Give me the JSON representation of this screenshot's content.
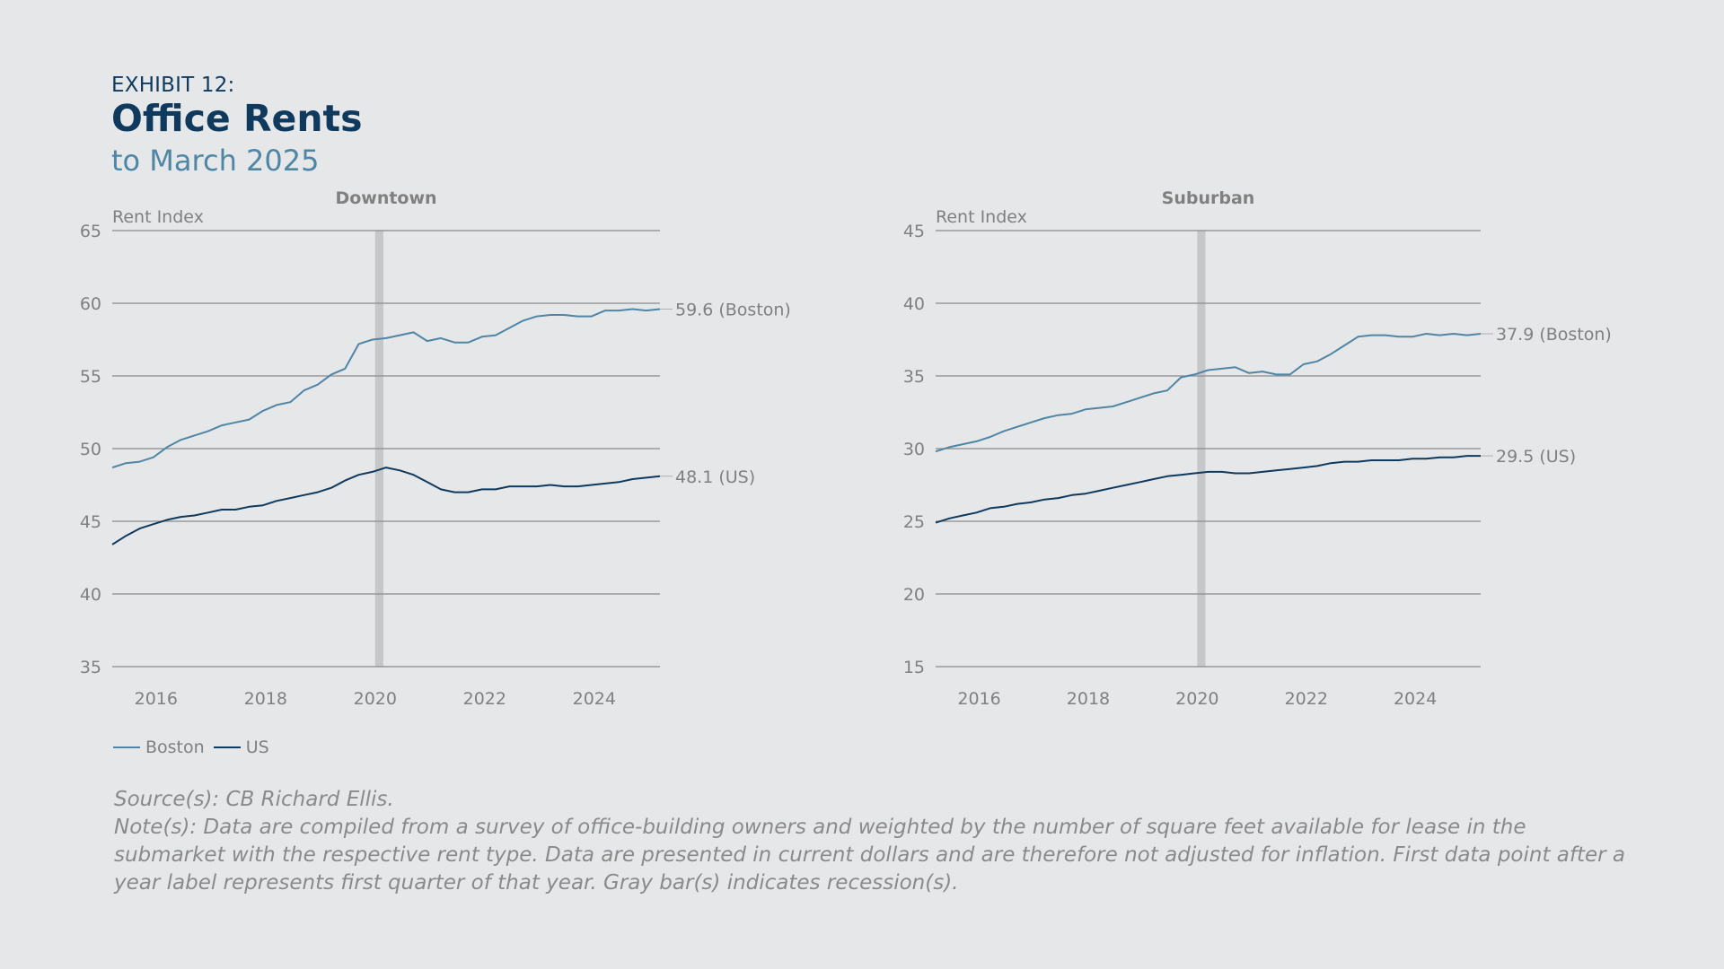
{
  "header": {
    "exhibit": "EXHIBIT 12:",
    "title": "Office Rents",
    "subtitle": "to March 2025"
  },
  "colors": {
    "boston": "#4f86a6",
    "us": "#0f3a5e",
    "recession": "#c6c7c9",
    "grid": "#8a8a8a",
    "text": "#808080"
  },
  "legend": [
    {
      "label": "Boston",
      "color": "#4f86a6"
    },
    {
      "label": "US",
      "color": "#0f3a5e"
    }
  ],
  "notes": {
    "source": "Source(s): CB Richard Ellis.",
    "note": "Note(s): Data are compiled from a survey of office-building owners and weighted by the number of square feet available for lease in the submarket with the respective rent type. Data are presented in current dollars and are therefore not adjusted for inflation. First data point after a year label represents first quarter of that year. Gray bar(s) indicates recession(s)."
  },
  "chart_data": [
    {
      "type": "line",
      "title": "Downtown",
      "ylabel": "Rent Index",
      "xlabel": "",
      "xlim": [
        2015.2,
        2025.2
      ],
      "ylim": [
        35,
        65
      ],
      "yticks": [
        35,
        40,
        45,
        50,
        55,
        60,
        65
      ],
      "xticks": [
        2016,
        2018,
        2020,
        2022,
        2024
      ],
      "grid": true,
      "recession": [
        2020.0,
        2020.15
      ],
      "end_labels": [
        "59.6 (Boston)",
        "48.1 (US)"
      ],
      "series": [
        {
          "name": "Boston",
          "color": "#4f86a6",
          "x": [
            2015.2,
            2015.45,
            2015.7,
            2015.95,
            2016.2,
            2016.45,
            2016.7,
            2016.95,
            2017.2,
            2017.45,
            2017.7,
            2017.95,
            2018.2,
            2018.45,
            2018.7,
            2018.95,
            2019.2,
            2019.45,
            2019.7,
            2019.95,
            2020.2,
            2020.45,
            2020.7,
            2020.95,
            2021.2,
            2021.45,
            2021.7,
            2021.95,
            2022.2,
            2022.45,
            2022.7,
            2022.95,
            2023.2,
            2023.45,
            2023.7,
            2023.95,
            2024.2,
            2024.45,
            2024.7,
            2024.95,
            2025.2
          ],
          "y": [
            48.7,
            49.0,
            49.1,
            49.4,
            50.1,
            50.6,
            50.9,
            51.2,
            51.6,
            51.8,
            52.0,
            52.6,
            53.0,
            53.2,
            54.0,
            54.4,
            55.1,
            55.5,
            57.2,
            57.5,
            57.6,
            57.8,
            58.0,
            57.4,
            57.6,
            57.3,
            57.3,
            57.7,
            57.8,
            58.3,
            58.8,
            59.1,
            59.2,
            59.2,
            59.1,
            59.1,
            59.5,
            59.5,
            59.6,
            59.5,
            59.6
          ]
        },
        {
          "name": "US",
          "color": "#0f3a5e",
          "x": [
            2015.2,
            2015.45,
            2015.7,
            2015.95,
            2016.2,
            2016.45,
            2016.7,
            2016.95,
            2017.2,
            2017.45,
            2017.7,
            2017.95,
            2018.2,
            2018.45,
            2018.7,
            2018.95,
            2019.2,
            2019.45,
            2019.7,
            2019.95,
            2020.2,
            2020.45,
            2020.7,
            2020.95,
            2021.2,
            2021.45,
            2021.7,
            2021.95,
            2022.2,
            2022.45,
            2022.7,
            2022.95,
            2023.2,
            2023.45,
            2023.7,
            2023.95,
            2024.2,
            2024.45,
            2024.7,
            2024.95,
            2025.2
          ],
          "y": [
            43.4,
            44.0,
            44.5,
            44.8,
            45.1,
            45.3,
            45.4,
            45.6,
            45.8,
            45.8,
            46.0,
            46.1,
            46.4,
            46.6,
            46.8,
            47.0,
            47.3,
            47.8,
            48.2,
            48.4,
            48.7,
            48.5,
            48.2,
            47.7,
            47.2,
            47.0,
            47.0,
            47.2,
            47.2,
            47.4,
            47.4,
            47.4,
            47.5,
            47.4,
            47.4,
            47.5,
            47.6,
            47.7,
            47.9,
            48.0,
            48.1
          ]
        }
      ]
    },
    {
      "type": "line",
      "title": "Suburban",
      "ylabel": "Rent Index",
      "xlabel": "",
      "xlim": [
        2015.2,
        2025.2
      ],
      "ylim": [
        15,
        45
      ],
      "yticks": [
        15,
        20,
        25,
        30,
        35,
        40,
        45
      ],
      "xticks": [
        2016,
        2018,
        2020,
        2022,
        2024
      ],
      "grid": true,
      "recession": [
        2020.0,
        2020.15
      ],
      "end_labels": [
        "37.9  (Boston)",
        "29.5  (US)"
      ],
      "series": [
        {
          "name": "Boston",
          "color": "#4f86a6",
          "x": [
            2015.2,
            2015.45,
            2015.7,
            2015.95,
            2016.2,
            2016.45,
            2016.7,
            2016.95,
            2017.2,
            2017.45,
            2017.7,
            2017.95,
            2018.2,
            2018.45,
            2018.7,
            2018.95,
            2019.2,
            2019.45,
            2019.7,
            2019.95,
            2020.2,
            2020.45,
            2020.7,
            2020.95,
            2021.2,
            2021.45,
            2021.7,
            2021.95,
            2022.2,
            2022.45,
            2022.7,
            2022.95,
            2023.2,
            2023.45,
            2023.7,
            2023.95,
            2024.2,
            2024.45,
            2024.7,
            2024.95,
            2025.2
          ],
          "y": [
            29.8,
            30.1,
            30.3,
            30.5,
            30.8,
            31.2,
            31.5,
            31.8,
            32.1,
            32.3,
            32.4,
            32.7,
            32.8,
            32.9,
            33.2,
            33.5,
            33.8,
            34.0,
            34.9,
            35.1,
            35.4,
            35.5,
            35.6,
            35.2,
            35.3,
            35.1,
            35.1,
            35.8,
            36.0,
            36.5,
            37.1,
            37.7,
            37.8,
            37.8,
            37.7,
            37.7,
            37.9,
            37.8,
            37.9,
            37.8,
            37.9
          ]
        },
        {
          "name": "US",
          "color": "#0f3a5e",
          "x": [
            2015.2,
            2015.45,
            2015.7,
            2015.95,
            2016.2,
            2016.45,
            2016.7,
            2016.95,
            2017.2,
            2017.45,
            2017.7,
            2017.95,
            2018.2,
            2018.45,
            2018.7,
            2018.95,
            2019.2,
            2019.45,
            2019.7,
            2019.95,
            2020.2,
            2020.45,
            2020.7,
            2020.95,
            2021.2,
            2021.45,
            2021.7,
            2021.95,
            2022.2,
            2022.45,
            2022.7,
            2022.95,
            2023.2,
            2023.45,
            2023.7,
            2023.95,
            2024.2,
            2024.45,
            2024.7,
            2024.95,
            2025.2
          ],
          "y": [
            24.9,
            25.2,
            25.4,
            25.6,
            25.9,
            26.0,
            26.2,
            26.3,
            26.5,
            26.6,
            26.8,
            26.9,
            27.1,
            27.3,
            27.5,
            27.7,
            27.9,
            28.1,
            28.2,
            28.3,
            28.4,
            28.4,
            28.3,
            28.3,
            28.4,
            28.5,
            28.6,
            28.7,
            28.8,
            29.0,
            29.1,
            29.1,
            29.2,
            29.2,
            29.2,
            29.3,
            29.3,
            29.4,
            29.4,
            29.5,
            29.5
          ]
        }
      ]
    }
  ]
}
